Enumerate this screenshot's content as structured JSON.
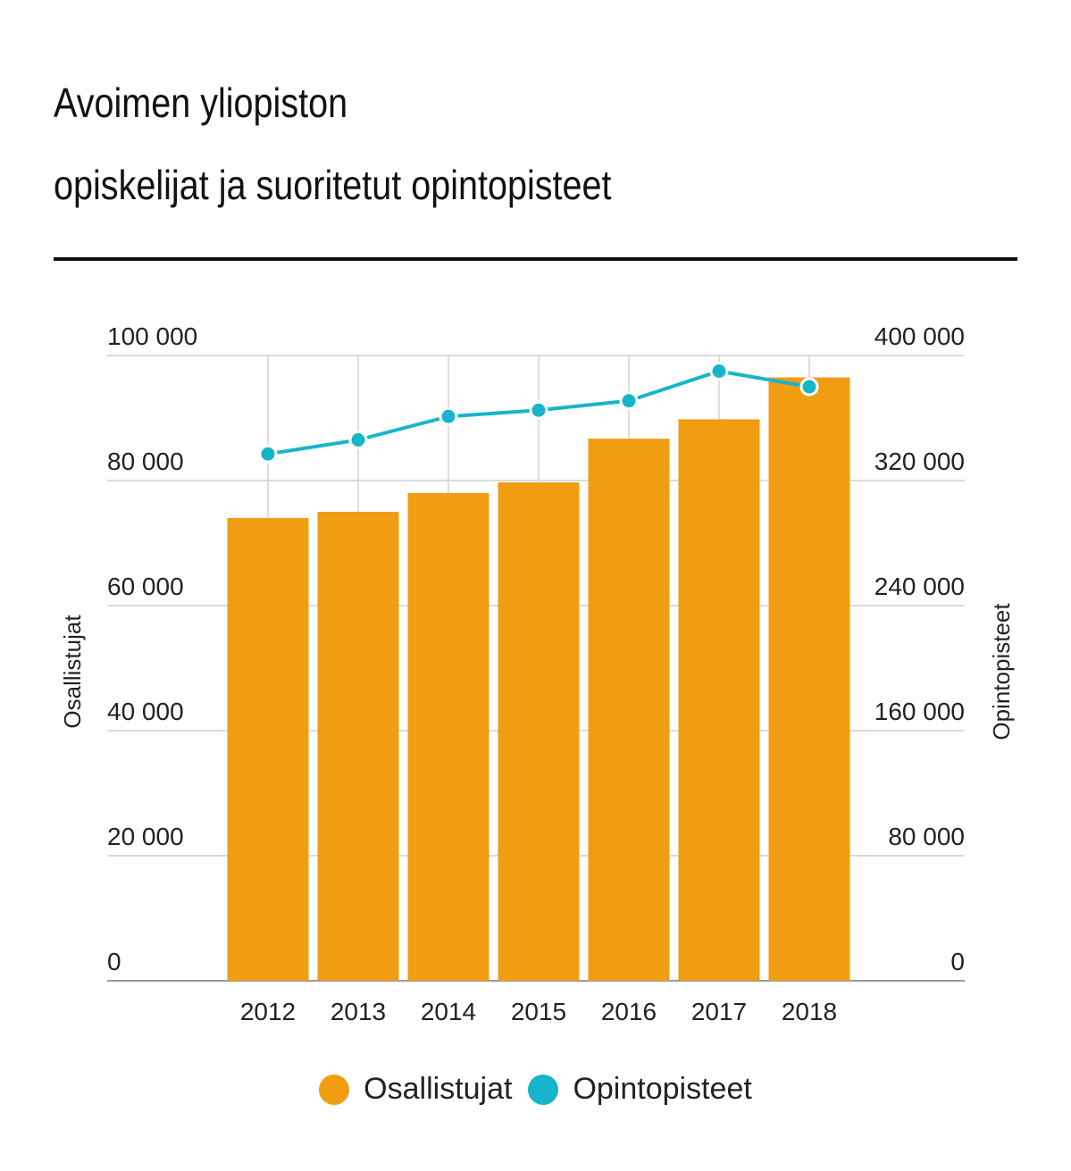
{
  "title_line1": "Avoimen yliopiston",
  "title_line2": "opiskelijat ja suoritetut opintopisteet",
  "chart_data": {
    "type": "bar",
    "categories": [
      "2012",
      "2013",
      "2014",
      "2015",
      "2016",
      "2017",
      "2018"
    ],
    "series": [
      {
        "name": "Osallistujat",
        "type": "bar",
        "axis": "left",
        "color": "#f09d12",
        "values": [
          74000,
          75000,
          78000,
          79700,
          86700,
          89800,
          96500
        ]
      },
      {
        "name": "Opintopisteet",
        "type": "line",
        "axis": "right",
        "color": "#16b5c9",
        "values": [
          337000,
          346000,
          361000,
          365000,
          371000,
          390000,
          380000
        ]
      }
    ],
    "ylabel_left": "Osallistujat",
    "ylabel_right": "Opintopisteet",
    "ylim_left": [
      0,
      100000
    ],
    "ylim_right": [
      0,
      400000
    ],
    "yticks_left": [
      "0",
      "20 000",
      "40 000",
      "60 000",
      "80 000",
      "100 000"
    ],
    "yticks_right": [
      "0",
      "80 000",
      "160 000",
      "240 000",
      "320 000",
      "400 000"
    ],
    "grid": true,
    "legend_position": "bottom"
  },
  "legend": [
    {
      "label": "Osallistujat",
      "color": "#f09d12"
    },
    {
      "label": "Opintopisteet",
      "color": "#16b5c9"
    }
  ]
}
